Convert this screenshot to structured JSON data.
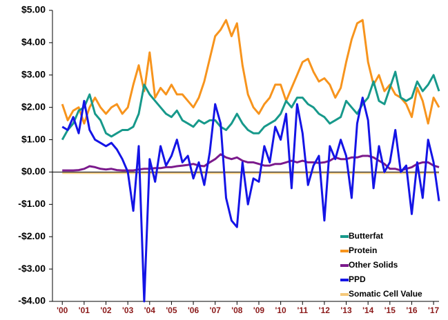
{
  "chart_data": {
    "type": "line",
    "x": [
      2000,
      2000.25,
      2000.5,
      2000.75,
      2001,
      2001.25,
      2001.5,
      2001.75,
      2002,
      2002.25,
      2002.5,
      2002.75,
      2003,
      2003.25,
      2003.5,
      2003.75,
      2004,
      2004.25,
      2004.5,
      2004.75,
      2005,
      2005.25,
      2005.5,
      2005.75,
      2006,
      2006.25,
      2006.5,
      2006.75,
      2007,
      2007.25,
      2007.5,
      2007.75,
      2008,
      2008.25,
      2008.5,
      2008.75,
      2009,
      2009.25,
      2009.5,
      2009.75,
      2010,
      2010.25,
      2010.5,
      2010.75,
      2011,
      2011.25,
      2011.5,
      2011.75,
      2012,
      2012.25,
      2012.5,
      2012.75,
      2013,
      2013.25,
      2013.5,
      2013.75,
      2014,
      2014.25,
      2014.5,
      2014.75,
      2015,
      2015.25,
      2015.5,
      2015.75,
      2016,
      2016.25,
      2016.5,
      2016.75,
      2017,
      2017.25
    ],
    "series": [
      {
        "name": "Butterfat",
        "color": "#17998b",
        "values": [
          1.0,
          1.3,
          1.5,
          1.9,
          2.0,
          2.4,
          1.8,
          1.6,
          1.2,
          1.1,
          1.2,
          1.3,
          1.3,
          1.4,
          1.8,
          2.7,
          2.4,
          2.2,
          2.0,
          1.8,
          1.7,
          1.9,
          1.6,
          1.5,
          1.4,
          1.6,
          1.5,
          1.6,
          1.6,
          1.4,
          1.3,
          1.5,
          1.8,
          1.5,
          1.3,
          1.2,
          1.2,
          1.4,
          1.5,
          1.6,
          1.8,
          2.2,
          2.0,
          2.3,
          2.3,
          2.1,
          2.0,
          1.8,
          1.7,
          1.5,
          1.6,
          1.7,
          2.2,
          2.0,
          1.8,
          2.1,
          2.3,
          2.8,
          2.2,
          2.1,
          2.6,
          3.1,
          2.3,
          2.2,
          2.3,
          2.8,
          2.5,
          2.7,
          3.0,
          2.5
        ]
      },
      {
        "name": "Protein",
        "color": "#f7941d",
        "values": [
          2.1,
          1.6,
          1.9,
          2.0,
          1.5,
          2.0,
          2.3,
          2.0,
          1.8,
          2.0,
          2.1,
          1.8,
          2.0,
          2.7,
          3.3,
          2.5,
          3.7,
          2.3,
          2.6,
          2.4,
          2.7,
          2.4,
          2.4,
          2.2,
          2.0,
          2.3,
          2.8,
          3.5,
          4.2,
          4.4,
          4.7,
          4.2,
          4.6,
          3.3,
          2.4,
          2.0,
          1.8,
          2.1,
          2.3,
          2.7,
          2.7,
          2.2,
          2.6,
          3.0,
          3.4,
          3.5,
          3.1,
          2.8,
          2.9,
          2.7,
          2.3,
          2.6,
          3.4,
          4.1,
          4.6,
          4.7,
          3.4,
          2.7,
          3.0,
          2.5,
          2.7,
          2.4,
          2.3,
          2.1,
          1.7,
          2.6,
          2.2,
          1.5,
          2.3,
          2.0
        ]
      },
      {
        "name": "Other Solids",
        "color": "#7b1a8c",
        "values": [
          0.05,
          0.05,
          0.05,
          0.06,
          0.1,
          0.18,
          0.15,
          0.1,
          0.08,
          0.1,
          0.06,
          0.05,
          0.05,
          0.05,
          0.08,
          0.1,
          0.1,
          0.12,
          0.12,
          0.15,
          0.15,
          0.18,
          0.2,
          0.22,
          0.25,
          0.2,
          0.18,
          0.3,
          0.4,
          0.55,
          0.45,
          0.4,
          0.45,
          0.35,
          0.3,
          0.3,
          0.25,
          0.2,
          0.2,
          0.25,
          0.25,
          0.3,
          0.35,
          0.3,
          0.35,
          0.3,
          0.3,
          0.28,
          0.3,
          0.35,
          0.45,
          0.4,
          0.4,
          0.45,
          0.45,
          0.5,
          0.5,
          0.45,
          0.35,
          0.25,
          0.1,
          0.1,
          0.05,
          0.1,
          0.15,
          0.25,
          0.3,
          0.3,
          0.2,
          0.15
        ]
      },
      {
        "name": "PPD",
        "color": "#1414e6",
        "values": [
          1.4,
          1.3,
          1.7,
          1.2,
          2.2,
          1.3,
          1.0,
          0.9,
          0.8,
          0.9,
          0.7,
          0.4,
          0.0,
          -1.2,
          0.8,
          -4.0,
          0.4,
          -0.3,
          0.8,
          0.2,
          0.5,
          1.0,
          0.3,
          0.5,
          -0.2,
          0.3,
          -0.4,
          0.6,
          2.1,
          1.5,
          -0.8,
          -1.5,
          -1.7,
          0.3,
          -1.0,
          -0.2,
          -0.3,
          0.8,
          0.3,
          1.4,
          1.0,
          1.8,
          -0.5,
          2.1,
          1.2,
          -0.4,
          0.2,
          0.5,
          -1.5,
          0.8,
          0.4,
          1.0,
          0.5,
          -0.8,
          1.5,
          2.3,
          1.6,
          -0.5,
          0.8,
          0.0,
          0.3,
          1.3,
          0.0,
          0.2,
          -1.3,
          0.3,
          -0.8,
          1.0,
          0.3,
          -0.9
        ]
      },
      {
        "name": "Somatic Cell Value",
        "color": "#f5c87a",
        "values": [
          -0.04,
          -0.04,
          -0.04,
          -0.04,
          -0.04,
          -0.04,
          -0.04,
          -0.04,
          -0.04,
          -0.04,
          -0.04,
          -0.04,
          -0.04,
          -0.04,
          -0.04,
          -0.04,
          -0.04,
          -0.04,
          -0.04,
          -0.04,
          -0.04,
          -0.04,
          -0.04,
          -0.04,
          -0.04,
          -0.04,
          -0.04,
          -0.04,
          -0.04,
          -0.04,
          -0.04,
          -0.04,
          -0.04,
          -0.04,
          -0.04,
          -0.04,
          -0.04,
          -0.04,
          -0.04,
          -0.04,
          -0.04,
          -0.04,
          -0.04,
          -0.04,
          -0.04,
          -0.04,
          -0.04,
          -0.04,
          -0.04,
          -0.04,
          -0.04,
          -0.04,
          -0.04,
          -0.04,
          -0.04,
          -0.04,
          -0.04,
          -0.04,
          -0.04,
          -0.04,
          -0.04,
          -0.04,
          -0.04,
          -0.04,
          -0.04,
          -0.04,
          -0.04,
          -0.04,
          -0.04,
          -0.04
        ]
      }
    ],
    "xlim": [
      1999.55,
      2017.25
    ],
    "xticks": [
      {
        "value": 2000,
        "label": "'00"
      },
      {
        "value": 2001,
        "label": "'01"
      },
      {
        "value": 2002,
        "label": "'02"
      },
      {
        "value": 2003,
        "label": "'03"
      },
      {
        "value": 2004,
        "label": "'04"
      },
      {
        "value": 2005,
        "label": "'05"
      },
      {
        "value": 2006,
        "label": "'06"
      },
      {
        "value": 2007,
        "label": "'07"
      },
      {
        "value": 2008,
        "label": "'08"
      },
      {
        "value": 2009,
        "label": "'09"
      },
      {
        "value": 2010,
        "label": "'10"
      },
      {
        "value": 2011,
        "label": "'11"
      },
      {
        "value": 2012,
        "label": "'12"
      },
      {
        "value": 2013,
        "label": "'13"
      },
      {
        "value": 2014,
        "label": "'14"
      },
      {
        "value": 2015,
        "label": "'15"
      },
      {
        "value": 2016,
        "label": "'16"
      },
      {
        "value": 2017,
        "label": "'17"
      }
    ],
    "ylim": [
      -4,
      5
    ],
    "yticks": [
      {
        "value": 5,
        "label": "$5.00"
      },
      {
        "value": 4,
        "label": "$4.00"
      },
      {
        "value": 3,
        "label": "$3.00"
      },
      {
        "value": 2,
        "label": "$2.00"
      },
      {
        "value": 1,
        "label": "$1.00"
      },
      {
        "value": 0,
        "label": "$0.00"
      },
      {
        "value": -1,
        "label": "-$1.00"
      },
      {
        "value": -2,
        "label": "-$2.00"
      },
      {
        "value": -3,
        "label": "-$3.00"
      },
      {
        "value": -4,
        "label": "-$4.00"
      }
    ],
    "legend": "lower right"
  }
}
